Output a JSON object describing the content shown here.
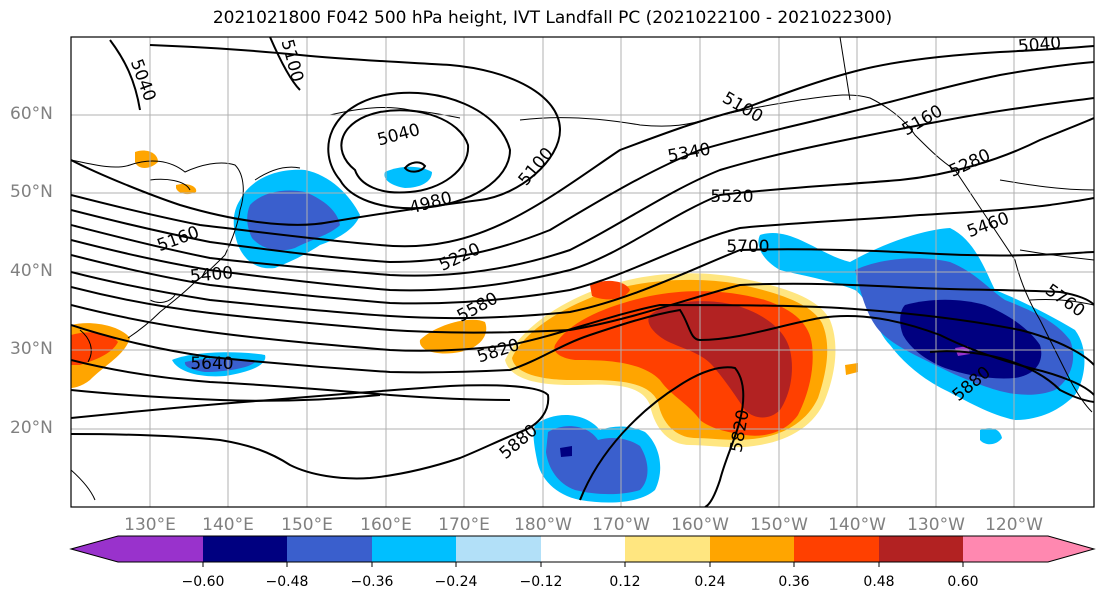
{
  "title": "2021021800 F042 500 hPa height, IVT Landfall PC (2021022100 - 2021022300)",
  "lat_labels": [
    "60°N",
    "50°N",
    "40°N",
    "30°N",
    "20°N"
  ],
  "lon_labels": [
    "130°E",
    "140°E",
    "150°E",
    "160°E",
    "170°E",
    "180°W",
    "170°W",
    "160°W",
    "150°W",
    "140°W",
    "130°W",
    "120°W"
  ],
  "colorbar": {
    "ticks": [
      "−0.60",
      "−0.48",
      "−0.36",
      "−0.24",
      "−0.12",
      "0.12",
      "0.24",
      "0.36",
      "0.48",
      "0.60"
    ],
    "colors": [
      "#9932cc",
      "#000080",
      "#3a5fcd",
      "#00bfff",
      "#b2e0f8",
      "#ffffff",
      "#ffe680",
      "#ffa500",
      "#ff4000",
      "#b22222",
      "#ff88b0"
    ]
  },
  "contour_labels": [
    "5040",
    "5100",
    "5040",
    "5100",
    "5040",
    "5100",
    "4980",
    "5160",
    "5340",
    "5280",
    "5520",
    "5460",
    "5160",
    "5220",
    "5400",
    "5700",
    "5760",
    "5580",
    "5820",
    "5640",
    "5880",
    "5880",
    "5820"
  ]
}
